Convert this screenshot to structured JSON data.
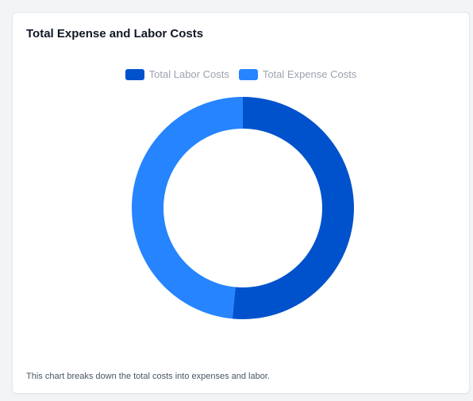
{
  "card": {
    "title": "Total Expense and Labor Costs",
    "caption": "This chart breaks down the total costs into expenses and labor."
  },
  "chart_data": {
    "type": "pie",
    "donut": true,
    "title": "",
    "legend_position": "top-center",
    "series": [
      {
        "name": "Total Labor Costs",
        "value": 51.5,
        "color": "#0052cc"
      },
      {
        "name": "Total Expense Costs",
        "value": 48.5,
        "color": "#2684ff"
      }
    ]
  }
}
